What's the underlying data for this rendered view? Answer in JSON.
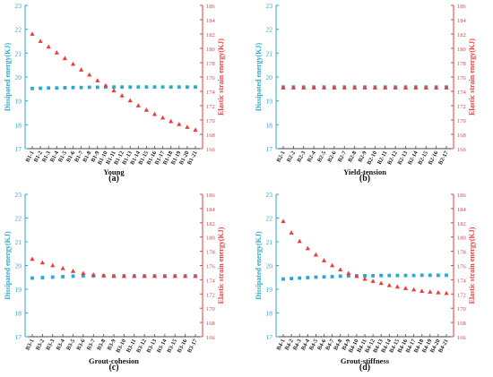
{
  "colors": {
    "dissipated": "#29a8d0",
    "elastic": "#ee3a3a",
    "axis": "#444444",
    "xtick": "#222222"
  },
  "chart_data": [
    {
      "type": "scatter",
      "panel_label": "(a)",
      "xlabel": "Young",
      "ylabel_left": "Dissipated energy(KJ)",
      "ylabel_right": "Elastic strain energy(KJ)",
      "ylim_left": [
        17,
        23
      ],
      "ylim_right": [
        166,
        186
      ],
      "yticks_left": [
        17,
        18,
        19,
        20,
        21,
        22,
        23
      ],
      "yticks_right": [
        166,
        168,
        170,
        172,
        174,
        176,
        178,
        180,
        182,
        184,
        186
      ],
      "categories": [
        "B1-1",
        "B1-2",
        "B1-3",
        "B1-4",
        "B1-5",
        "B1-6",
        "B1-7",
        "B1-8",
        "B1-9",
        "B1-10",
        "B1-11",
        "B1-12",
        "B1-13",
        "B1-14",
        "B1-15",
        "B1-16",
        "B1-17",
        "B1-18",
        "B1-19",
        "B1-20",
        "B1-21"
      ],
      "series": [
        {
          "axis": "left",
          "marker": "square",
          "values": [
            19.52,
            19.53,
            19.54,
            19.54,
            19.55,
            19.56,
            19.56,
            19.57,
            19.57,
            19.58,
            19.58,
            19.58,
            19.58,
            19.58,
            19.58,
            19.58,
            19.58,
            19.58,
            19.58,
            19.58,
            19.58
          ]
        },
        {
          "axis": "right",
          "marker": "triangle",
          "values": [
            182.0,
            181.0,
            180.2,
            179.4,
            178.6,
            177.8,
            177.0,
            176.3,
            175.5,
            174.8,
            174.1,
            173.4,
            172.7,
            172.0,
            171.4,
            170.8,
            170.3,
            169.8,
            169.4,
            169.0,
            168.6
          ]
        }
      ]
    },
    {
      "type": "scatter",
      "panel_label": "(b)",
      "xlabel": "Yield-tension",
      "ylabel_left": "Dissipated energy(KJ)",
      "ylabel_right": "Elastic strain energy(KJ)",
      "ylim_left": [
        17,
        23
      ],
      "ylim_right": [
        166,
        186
      ],
      "yticks_left": [
        17,
        18,
        19,
        20,
        21,
        22,
        23
      ],
      "yticks_right": [
        166,
        168,
        170,
        172,
        174,
        176,
        178,
        180,
        182,
        184,
        186
      ],
      "categories": [
        "B2-1",
        "B2-2",
        "B2-3",
        "B2-4",
        "B2-5",
        "B2-6",
        "B2-7",
        "B2-8",
        "B2-9",
        "B2-10",
        "B2-11",
        "B2-12",
        "B2-13",
        "B2-14",
        "B2-15",
        "B2-16",
        "B2-17"
      ],
      "series": [
        {
          "axis": "left",
          "marker": "square",
          "values": [
            19.58,
            19.58,
            19.58,
            19.58,
            19.58,
            19.58,
            19.58,
            19.58,
            19.58,
            19.58,
            19.58,
            19.58,
            19.58,
            19.58,
            19.58,
            19.58,
            19.58
          ]
        },
        {
          "axis": "right",
          "marker": "triangle",
          "values": [
            174.5,
            174.5,
            174.5,
            174.5,
            174.5,
            174.5,
            174.5,
            174.5,
            174.5,
            174.5,
            174.5,
            174.5,
            174.5,
            174.5,
            174.5,
            174.5,
            174.5
          ]
        }
      ]
    },
    {
      "type": "scatter",
      "panel_label": "(c)",
      "xlabel": "Grout-cohesion",
      "ylabel_left": "Dissipated energy(KJ)",
      "ylabel_right": "Elastic strain energy(KJ)",
      "ylim_left": [
        17,
        23
      ],
      "ylim_right": [
        166,
        186
      ],
      "yticks_left": [
        17,
        18,
        19,
        20,
        21,
        22,
        23
      ],
      "yticks_right": [
        166,
        168,
        170,
        172,
        174,
        176,
        178,
        180,
        182,
        184,
        186
      ],
      "categories": [
        "B3-1",
        "B3-2",
        "B3-3",
        "B3-4",
        "B3-5",
        "B3-6",
        "B3-7",
        "B3-8",
        "B3-9",
        "B3-10",
        "B3-11",
        "B3-12",
        "B3-13",
        "B3-14",
        "B3-15",
        "B3-16",
        "B3-17"
      ],
      "series": [
        {
          "axis": "left",
          "marker": "square",
          "values": [
            19.47,
            19.49,
            19.51,
            19.53,
            19.55,
            19.56,
            19.56,
            19.56,
            19.56,
            19.56,
            19.56,
            19.56,
            19.56,
            19.56,
            19.56,
            19.56,
            19.56
          ]
        },
        {
          "axis": "right",
          "marker": "triangle",
          "values": [
            176.9,
            176.4,
            176.0,
            175.6,
            175.2,
            174.9,
            174.7,
            174.6,
            174.5,
            174.5,
            174.5,
            174.5,
            174.5,
            174.5,
            174.5,
            174.5,
            174.5
          ]
        }
      ]
    },
    {
      "type": "scatter",
      "panel_label": "(d)",
      "xlabel": "Grout-stiffness",
      "ylabel_left": "Dissipated energy(KJ)",
      "ylabel_right": "Elastic strain energy(KJ)",
      "ylim_left": [
        17,
        23
      ],
      "ylim_right": [
        166,
        186
      ],
      "yticks_left": [
        17,
        18,
        19,
        20,
        21,
        22,
        23
      ],
      "yticks_right": [
        166,
        168,
        170,
        172,
        174,
        176,
        178,
        180,
        182,
        184,
        186
      ],
      "categories": [
        "B4-1",
        "B4-2",
        "B4-3",
        "B4-4",
        "B4-5",
        "B4-6",
        "B4-7",
        "B4-8",
        "B4-9",
        "B4-10",
        "B4-11",
        "B4-12",
        "B4-13",
        "B4-14",
        "B4-15",
        "B4-16",
        "B4-17",
        "B4-18",
        "B4-19",
        "B4-20",
        "B4-21"
      ],
      "series": [
        {
          "axis": "left",
          "marker": "square",
          "values": [
            19.43,
            19.45,
            19.47,
            19.49,
            19.51,
            19.52,
            19.53,
            19.55,
            19.56,
            19.56,
            19.57,
            19.57,
            19.58,
            19.58,
            19.58,
            19.58,
            19.58,
            19.59,
            19.59,
            19.59,
            19.59
          ]
        },
        {
          "axis": "right",
          "marker": "triangle",
          "values": [
            182.2,
            180.6,
            179.4,
            178.4,
            177.5,
            176.7,
            176.0,
            175.4,
            174.9,
            174.5,
            174.1,
            173.8,
            173.5,
            173.2,
            173.0,
            172.8,
            172.6,
            172.4,
            172.3,
            172.2,
            172.1
          ]
        }
      ]
    }
  ]
}
